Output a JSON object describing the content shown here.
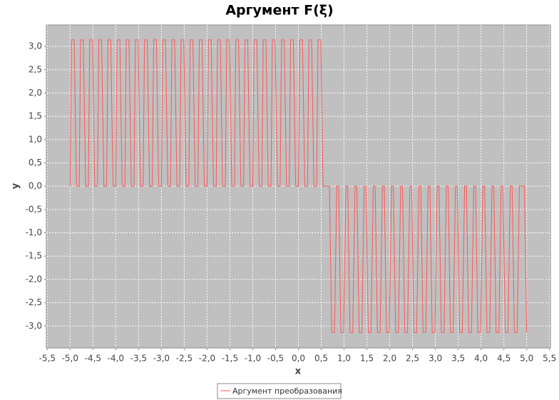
{
  "chart_data": {
    "type": "line",
    "title": "Аргумент F(ξ)",
    "x_label": "x",
    "y_label": "y",
    "x": [
      -5,
      -4.97,
      -4.91,
      -4.86,
      -4.8,
      -4.77,
      -4.71,
      -4.66,
      -4.6,
      -4.57,
      -4.51,
      -4.46,
      -4.4,
      -4.37,
      -4.31,
      -4.26,
      -4.2,
      -4.17,
      -4.11,
      -4.06,
      -4,
      -3.97,
      -3.91,
      -3.86,
      -3.8,
      -3.77,
      -3.71,
      -3.66,
      -3.6,
      -3.57,
      -3.51,
      -3.46,
      -3.4,
      -3.37,
      -3.31,
      -3.26,
      -3.2,
      -3.17,
      -3.11,
      -3.06,
      -3,
      -2.97,
      -2.91,
      -2.86,
      -2.8,
      -2.77,
      -2.71,
      -2.66,
      -2.6,
      -2.57,
      -2.51,
      -2.46,
      -2.4,
      -2.37,
      -2.31,
      -2.26,
      -2.2,
      -2.17,
      -2.11,
      -2.06,
      -2,
      -1.97,
      -1.91,
      -1.86,
      -1.8,
      -1.77,
      -1.71,
      -1.66,
      -1.6,
      -1.57,
      -1.51,
      -1.46,
      -1.4,
      -1.37,
      -1.31,
      -1.26,
      -1.2,
      -1.17,
      -1.11,
      -1.06,
      -1,
      -0.97,
      -0.91,
      -0.86,
      -0.8,
      -0.77,
      -0.71,
      -0.66,
      -0.6,
      -0.57,
      -0.51,
      -0.46,
      -0.4,
      -0.37,
      -0.31,
      -0.26,
      -0.2,
      -0.17,
      -0.11,
      -0.06,
      0,
      0.03,
      0.09,
      0.14,
      0.2,
      0.23,
      0.29,
      0.34,
      0.4,
      0.43,
      0.49,
      0.54,
      0.68,
      0.73,
      0.79,
      0.84,
      0.88,
      0.93,
      0.99,
      1.04,
      1.08,
      1.13,
      1.19,
      1.24,
      1.28,
      1.33,
      1.39,
      1.44,
      1.48,
      1.53,
      1.59,
      1.64,
      1.68,
      1.73,
      1.79,
      1.84,
      1.88,
      1.93,
      1.99,
      2.04,
      2.08,
      2.13,
      2.19,
      2.24,
      2.28,
      2.33,
      2.39,
      2.44,
      2.48,
      2.53,
      2.59,
      2.64,
      2.68,
      2.73,
      2.79,
      2.84,
      2.88,
      2.93,
      2.99,
      3.04,
      3.08,
      3.13,
      3.19,
      3.24,
      3.28,
      3.33,
      3.39,
      3.44,
      3.48,
      3.53,
      3.59,
      3.64,
      3.68,
      3.73,
      3.79,
      3.84,
      3.88,
      3.93,
      3.99,
      4.04,
      4.08,
      4.13,
      4.19,
      4.24,
      4.28,
      4.33,
      4.39,
      4.44,
      4.48,
      4.53,
      4.59,
      4.64,
      4.68,
      4.73,
      4.79,
      4.84,
      4.95,
      5
    ],
    "series": [
      {
        "name": "Аргумент преобразования",
        "color": "#ff5555",
        "values": [
          0,
          3.14,
          3.14,
          0,
          0,
          3.14,
          3.14,
          0,
          0,
          3.14,
          3.14,
          0,
          0,
          3.14,
          3.14,
          0,
          0,
          3.14,
          3.14,
          0,
          0,
          3.14,
          3.14,
          0,
          0,
          3.14,
          3.14,
          0,
          0,
          3.14,
          3.14,
          0,
          0,
          3.14,
          3.14,
          0,
          0,
          3.14,
          3.14,
          0,
          0,
          3.14,
          3.14,
          0,
          0,
          3.14,
          3.14,
          0,
          0,
          3.14,
          3.14,
          0,
          0,
          3.14,
          3.14,
          0,
          0,
          3.14,
          3.14,
          0,
          0,
          3.14,
          3.14,
          0,
          0,
          3.14,
          3.14,
          0,
          0,
          3.14,
          3.14,
          0,
          0,
          3.14,
          3.14,
          0,
          0,
          3.14,
          3.14,
          0,
          0,
          3.14,
          3.14,
          0,
          0,
          3.14,
          3.14,
          0,
          0,
          3.14,
          3.14,
          0,
          0,
          3.14,
          3.14,
          0,
          0,
          3.14,
          3.14,
          0,
          0,
          3.14,
          3.14,
          0,
          0,
          3.14,
          3.14,
          0,
          0,
          3.14,
          3.14,
          0,
          0,
          -3.14,
          -3.14,
          0,
          0,
          -3.14,
          -3.14,
          0,
          0,
          -3.14,
          -3.14,
          0,
          0,
          -3.14,
          -3.14,
          0,
          0,
          -3.14,
          -3.14,
          0,
          0,
          -3.14,
          -3.14,
          0,
          0,
          -3.14,
          -3.14,
          0,
          0,
          -3.14,
          -3.14,
          0,
          0,
          -3.14,
          -3.14,
          0,
          0,
          -3.14,
          -3.14,
          0,
          0,
          -3.14,
          -3.14,
          0,
          0,
          -3.14,
          -3.14,
          0,
          0,
          -3.14,
          -3.14,
          0,
          0,
          -3.14,
          -3.14,
          0,
          0,
          -3.14,
          -3.14,
          0,
          0,
          -3.14,
          -3.14,
          0,
          0,
          -3.14,
          -3.14,
          0,
          0,
          -3.14,
          -3.14,
          0,
          0,
          -3.14,
          -3.14,
          0,
          0,
          -3.14,
          -3.14,
          0,
          0,
          -3.14,
          -3.14,
          0,
          0,
          -3.14
        ]
      }
    ],
    "xlim": [
      -5.52,
      5.52
    ],
    "ylim": [
      -3.47,
      3.46
    ],
    "xticks": [
      {
        "value": -5.5,
        "label": "-5,5"
      },
      {
        "value": -5,
        "label": "-5,0"
      },
      {
        "value": -4.5,
        "label": "-4,5"
      },
      {
        "value": -4,
        "label": "-4,0"
      },
      {
        "value": -3.5,
        "label": "-3,5"
      },
      {
        "value": -3,
        "label": "-3,0"
      },
      {
        "value": -2.5,
        "label": "-2,5"
      },
      {
        "value": -2,
        "label": "-2,0"
      },
      {
        "value": -1.5,
        "label": "-1,5"
      },
      {
        "value": -1,
        "label": "-1,0"
      },
      {
        "value": -0.5,
        "label": "-0,5"
      },
      {
        "value": 0,
        "label": "0,0"
      },
      {
        "value": 0.5,
        "label": "0,5"
      },
      {
        "value": 1,
        "label": "1,0"
      },
      {
        "value": 1.5,
        "label": "1,5"
      },
      {
        "value": 2,
        "label": "2,0"
      },
      {
        "value": 2.5,
        "label": "2,5"
      },
      {
        "value": 3,
        "label": "3,0"
      },
      {
        "value": 3.5,
        "label": "3,5"
      },
      {
        "value": 4,
        "label": "4,0"
      },
      {
        "value": 4.5,
        "label": "4,5"
      },
      {
        "value": 5,
        "label": "5,0"
      },
      {
        "value": 5.5,
        "label": "5,5"
      }
    ],
    "yticks": [
      {
        "value": 3,
        "label": "3,0"
      },
      {
        "value": 2.5,
        "label": "2,5"
      },
      {
        "value": 2,
        "label": "2,0"
      },
      {
        "value": 1.5,
        "label": "1,5"
      },
      {
        "value": 1,
        "label": "1,0"
      },
      {
        "value": 0.5,
        "label": "0,5"
      },
      {
        "value": 0,
        "label": "0,0"
      },
      {
        "value": -0.5,
        "label": "-0,5"
      },
      {
        "value": -1,
        "label": "-1,0"
      },
      {
        "value": -1.5,
        "label": "-1,5"
      },
      {
        "value": -2,
        "label": "-2,0"
      },
      {
        "value": -2.5,
        "label": "-2,5"
      },
      {
        "value": -3,
        "label": "-3,0"
      }
    ],
    "grid": true
  }
}
